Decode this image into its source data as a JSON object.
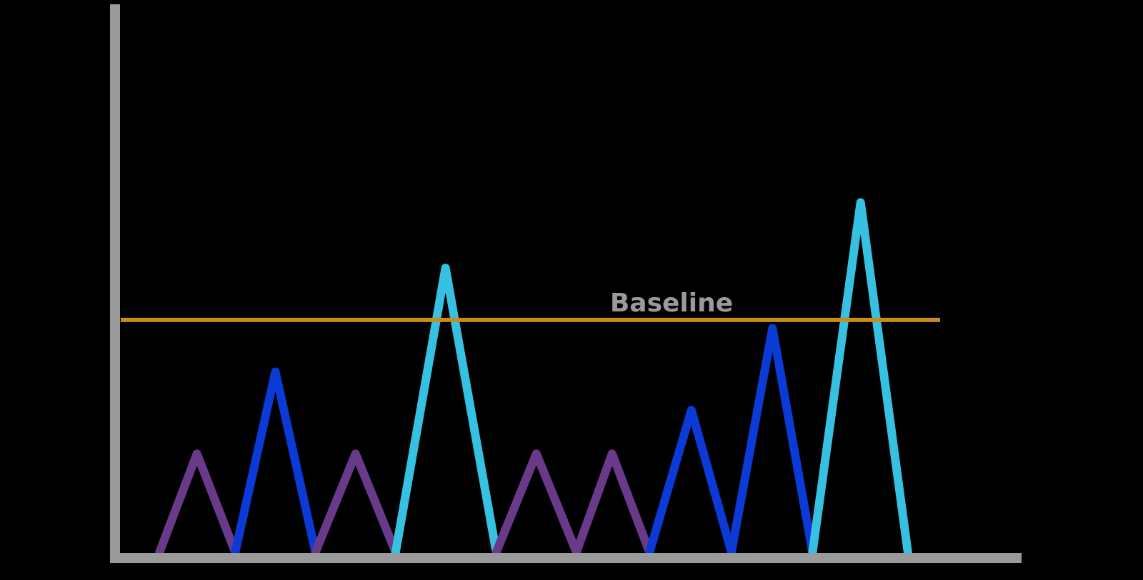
{
  "chart_data": {
    "type": "line",
    "title": "",
    "xlabel": "",
    "ylabel": "",
    "grid": false,
    "legend": "none",
    "ylim": [
      0,
      1
    ],
    "xlim": [
      0,
      1
    ],
    "baseline": {
      "label": "Baseline",
      "value": 0.425,
      "color": "#c98a1e"
    },
    "axis_color": "#9a9a9a",
    "series": [
      {
        "color": "#6a3a8a",
        "points": [
          [
            0.05,
            0.0
          ],
          [
            0.092,
            0.18
          ],
          [
            0.135,
            0.0
          ]
        ]
      },
      {
        "color": "#0b3ad6",
        "points": [
          [
            0.135,
            0.0
          ],
          [
            0.18,
            0.33
          ],
          [
            0.225,
            0.0
          ]
        ]
      },
      {
        "color": "#6a3a8a",
        "points": [
          [
            0.225,
            0.0
          ],
          [
            0.27,
            0.18
          ],
          [
            0.315,
            0.0
          ]
        ]
      },
      {
        "color": "#35c1df",
        "points": [
          [
            0.315,
            0.0
          ],
          [
            0.371,
            0.52
          ],
          [
            0.428,
            0.0
          ]
        ]
      },
      {
        "color": "#6a3a8a",
        "points": [
          [
            0.428,
            0.0
          ],
          [
            0.473,
            0.18
          ],
          [
            0.518,
            0.0
          ]
        ]
      },
      {
        "color": "#6a3a8a",
        "points": [
          [
            0.518,
            0.0
          ],
          [
            0.558,
            0.18
          ],
          [
            0.6,
            0.0
          ]
        ]
      },
      {
        "color": "#0b3ad6",
        "points": [
          [
            0.6,
            0.0
          ],
          [
            0.647,
            0.26
          ],
          [
            0.692,
            0.0
          ]
        ]
      },
      {
        "color": "#0b3ad6",
        "points": [
          [
            0.692,
            0.0
          ],
          [
            0.738,
            0.41
          ],
          [
            0.783,
            0.0
          ]
        ]
      },
      {
        "color": "#35c1df",
        "points": [
          [
            0.783,
            0.0
          ],
          [
            0.837,
            0.64
          ],
          [
            0.89,
            0.0
          ]
        ]
      }
    ]
  }
}
